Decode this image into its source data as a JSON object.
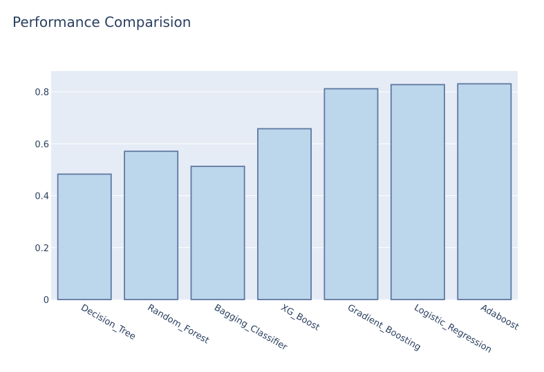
{
  "chart_data": {
    "type": "bar",
    "title": "Performance Comparision",
    "categories": [
      "Decision_Tree",
      "Random_Forest",
      "Bagging_Classifier",
      "XG_Boost",
      "Gradient_Boosting",
      "Logistic_Regression",
      "Adaboost"
    ],
    "values": [
      0.483,
      0.571,
      0.513,
      0.658,
      0.812,
      0.828,
      0.831
    ],
    "ylim": [
      0,
      0.88
    ],
    "yticks": [
      0,
      0.2,
      0.4,
      0.6,
      0.8
    ],
    "ytick_labels": [
      "0",
      "0.2",
      "0.4",
      "0.6",
      "0.8"
    ],
    "grid": true,
    "colors": {
      "plot_background": "#e5ecf6",
      "bar_fill": "#bcd7eb",
      "bar_stroke": "#5f77a0",
      "grid": "#ffffff",
      "text": "#2a3f5f"
    }
  }
}
